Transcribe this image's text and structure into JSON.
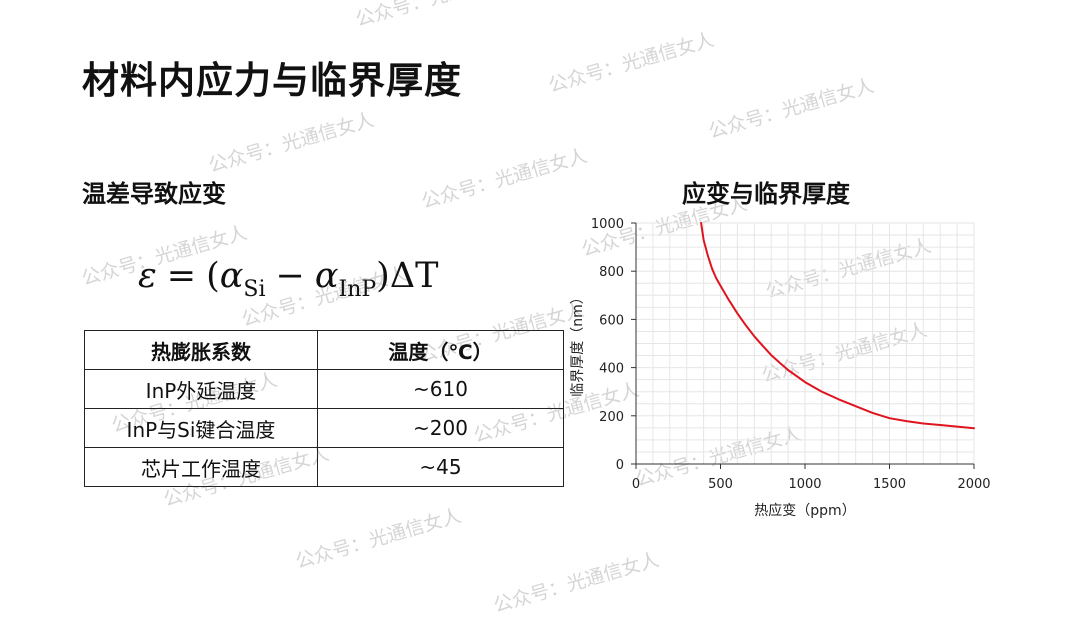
{
  "slide": {
    "title": "材料内应力与临界厚度",
    "left_section_title": "温差导致应变"
  },
  "formula": {
    "epsilon": "ε",
    "equals": "=",
    "open_paren": "(",
    "alpha1": "α",
    "sub1": "Si",
    "minus": "−",
    "alpha2": "α",
    "sub2": "InP",
    "close_paren": ")",
    "delta_t": "ΔT"
  },
  "table": {
    "headers": [
      "热膨胀系数",
      "温度（℃）"
    ],
    "rows": [
      [
        "InP外延温度",
        "~610"
      ],
      [
        "InP与Si键合温度",
        "~200"
      ],
      [
        "芯片工作温度",
        "~45"
      ]
    ]
  },
  "watermark": "公众号：光通信女人",
  "chart_data": {
    "type": "line",
    "title": "应变与临界厚度",
    "xlabel": "热应变（ppm）",
    "ylabel": "临界厚度（nm）",
    "xlim": [
      0,
      2000
    ],
    "ylim": [
      0,
      1000
    ],
    "xticks": [
      0,
      500,
      1000,
      1500,
      2000
    ],
    "yticks": [
      0,
      200,
      400,
      600,
      800,
      1000
    ],
    "grid": true,
    "series": [
      {
        "color": "#e0141e",
        "x": [
          385,
          400,
          425,
          450,
          475,
          500,
          550,
          600,
          650,
          700,
          750,
          800,
          850,
          900,
          1000,
          1100,
          1200,
          1300,
          1400,
          1500,
          1600,
          1700,
          1800,
          1900,
          2000
        ],
        "y": [
          1000,
          930,
          865,
          810,
          770,
          740,
          680,
          625,
          575,
          530,
          490,
          452,
          420,
          390,
          340,
          300,
          268,
          240,
          212,
          190,
          178,
          168,
          162,
          155,
          148
        ]
      }
    ]
  }
}
